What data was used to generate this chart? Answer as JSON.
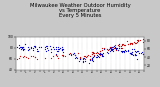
{
  "title": "Milwaukee Weather Outdoor Humidity\nvs Temperature\nEvery 5 Minutes",
  "title_fontsize": 3.8,
  "background_color": "#c8c8c8",
  "plot_bg_color": "#ffffff",
  "blue_color": "#0000cc",
  "red_color": "#cc0000",
  "ylim_left": [
    40,
    100
  ],
  "ylim_right": [
    10,
    90
  ],
  "seed": 7
}
